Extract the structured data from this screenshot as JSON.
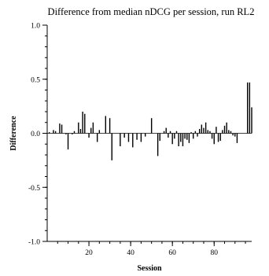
{
  "chart_data": {
    "type": "bar",
    "title": "Difference from median nDCG per session, run RL2",
    "xlabel": "Session",
    "ylabel": "Difference",
    "xlim": [
      0,
      98
    ],
    "ylim": [
      -1.0,
      1.0
    ],
    "x_ticks": [
      20,
      40,
      60,
      80
    ],
    "x_tick_labels": [
      "20",
      "40",
      "60",
      "80"
    ],
    "y_ticks": [
      -1.0,
      -0.5,
      0.0,
      0.5,
      1.0
    ],
    "y_tick_labels": [
      "-1.0",
      "-0.5",
      "0.0",
      "0.5",
      "1.0"
    ],
    "grid": false,
    "sessions": [
      1,
      2,
      3,
      4,
      5,
      6,
      7,
      8,
      9,
      10,
      11,
      12,
      13,
      14,
      15,
      16,
      17,
      18,
      19,
      20,
      21,
      22,
      23,
      24,
      25,
      26,
      27,
      28,
      29,
      30,
      31,
      32,
      33,
      34,
      35,
      36,
      37,
      38,
      39,
      40,
      41,
      42,
      43,
      44,
      45,
      46,
      47,
      48,
      49,
      50,
      51,
      52,
      53,
      54,
      55,
      56,
      57,
      58,
      59,
      60,
      61,
      62,
      63,
      64,
      65,
      66,
      67,
      68,
      69,
      70,
      71,
      72,
      73,
      74,
      75,
      76,
      77,
      78,
      79,
      80,
      81,
      82,
      83,
      84,
      85,
      86,
      87,
      88,
      89,
      90,
      91,
      92,
      93,
      94,
      95,
      96,
      97,
      98
    ],
    "values": [
      0.01,
      0.0,
      0.03,
      0.02,
      0.0,
      0.09,
      0.08,
      0.0,
      -0.01,
      -0.15,
      0.0,
      -0.01,
      0.02,
      0.0,
      0.1,
      0.04,
      0.2,
      0.18,
      0.0,
      -0.04,
      0.05,
      0.1,
      0.0,
      -0.08,
      0.03,
      0.0,
      0.0,
      0.16,
      0.0,
      0.14,
      -0.25,
      0.0,
      0.0,
      0.0,
      -0.12,
      0.0,
      -0.04,
      0.0,
      -0.08,
      0.0,
      -0.13,
      0.0,
      -0.06,
      0.0,
      -0.08,
      0.0,
      -0.03,
      0.0,
      0.0,
      0.14,
      0.0,
      0.0,
      -0.21,
      -0.07,
      0.0,
      0.02,
      0.05,
      -0.04,
      0.02,
      -0.1,
      -0.05,
      0.02,
      -0.12,
      -0.08,
      -0.12,
      -0.05,
      -0.06,
      -0.09,
      0.01,
      -0.05,
      0.02,
      -0.03,
      0.04,
      0.08,
      0.05,
      0.1,
      0.03,
      0.02,
      -0.05,
      -0.1,
      0.06,
      -0.08,
      -0.07,
      0.03,
      0.07,
      0.1,
      0.03,
      0.02,
      -0.02,
      -0.03,
      -0.09,
      0.0,
      0.0,
      0.0,
      0.0,
      0.47,
      0.47,
      0.24
    ]
  }
}
